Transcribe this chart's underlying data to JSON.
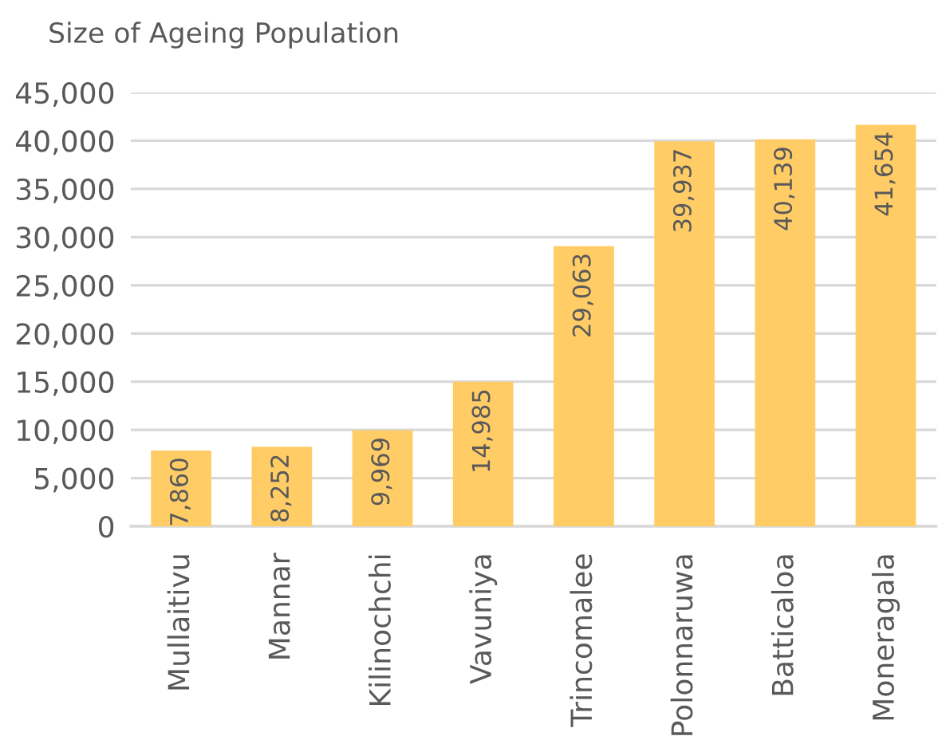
{
  "chart_data": {
    "type": "bar",
    "title": "Size of Ageing Population",
    "categories": [
      "Mullaitivu",
      "Mannar",
      "Kilinochchi",
      "Vavuniya",
      "Trincomalee",
      "Polonnaruwa",
      "Batticaloa",
      "Moneragala"
    ],
    "values": [
      7860,
      8252,
      9969,
      14985,
      29063,
      39937,
      40139,
      41654
    ],
    "value_labels": [
      "7,860",
      "8,252",
      "9,969",
      "14,985",
      "29,063",
      "39,937",
      "40,139",
      "41,654"
    ],
    "color": "#ffcc66",
    "ylim": [
      0,
      45000
    ],
    "yticks": [
      {
        "value": 0,
        "label": "0"
      },
      {
        "value": 5000,
        "label": "5,000"
      },
      {
        "value": 10000,
        "label": "10,000"
      },
      {
        "value": 15000,
        "label": "15,000"
      },
      {
        "value": 20000,
        "label": "20,000"
      },
      {
        "value": 25000,
        "label": "25,000"
      },
      {
        "value": 30000,
        "label": "30,000"
      },
      {
        "value": 35000,
        "label": "35,000"
      },
      {
        "value": 40000,
        "label": "40,000"
      },
      {
        "value": 45000,
        "label": "45,000"
      }
    ],
    "grid": "y"
  }
}
